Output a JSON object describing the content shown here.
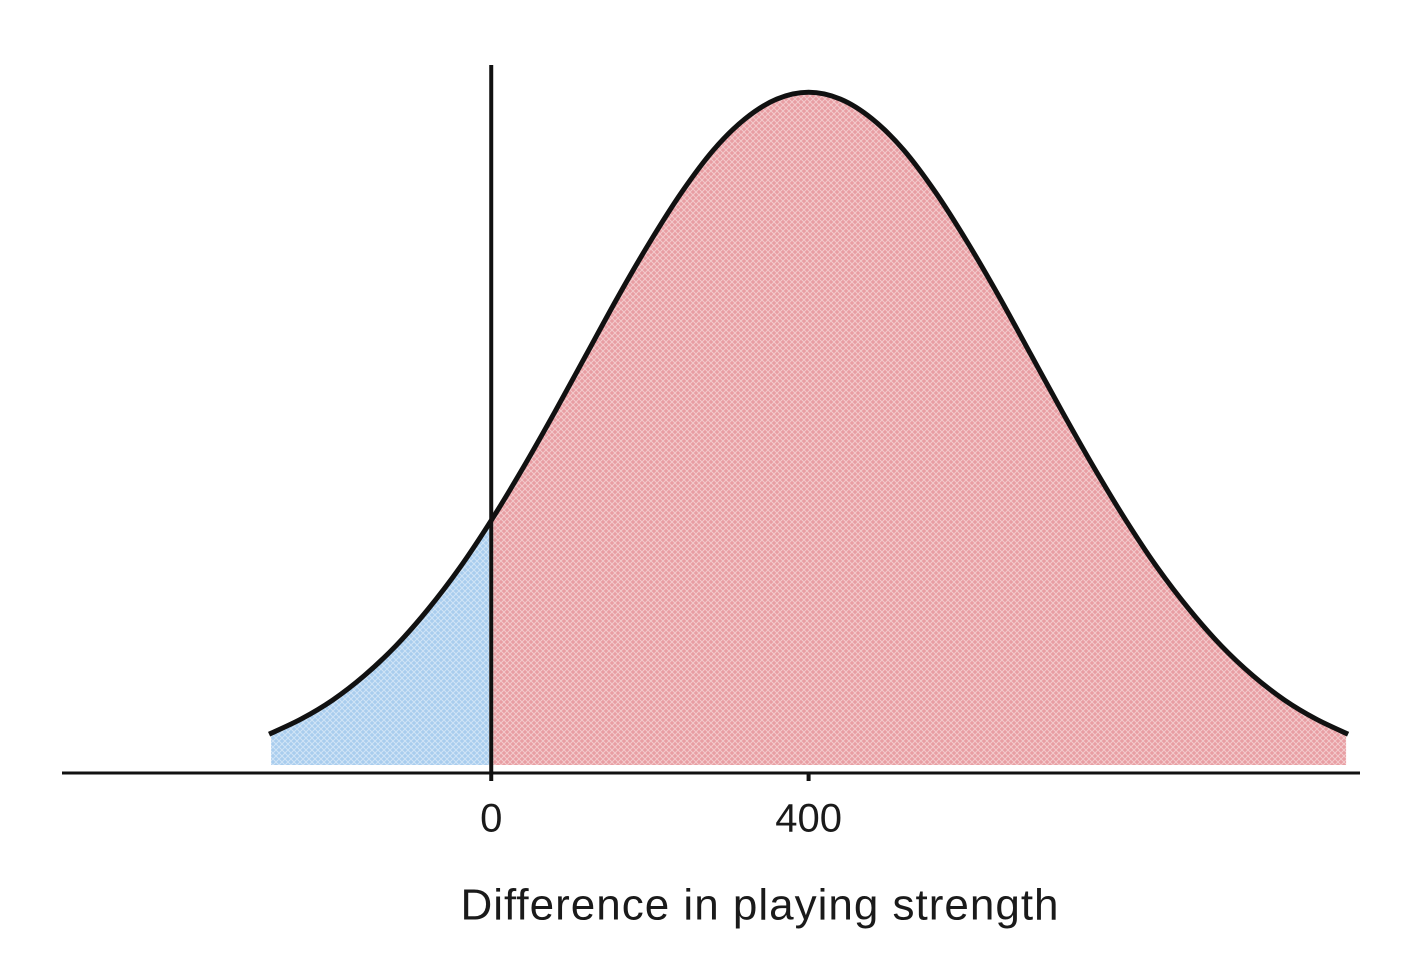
{
  "chart_data": {
    "type": "area",
    "x_label": "Difference in playing strength",
    "x": [
      -280,
      -240,
      -200,
      -160,
      -120,
      -80,
      -40,
      0,
      40,
      80,
      120,
      160,
      200,
      240,
      280,
      320,
      360,
      400,
      440,
      480,
      520,
      560,
      600,
      640,
      680,
      720,
      760,
      800,
      840,
      880,
      920,
      960,
      1000,
      1040,
      1080
    ],
    "values": [
      0.057,
      0.079,
      0.107,
      0.143,
      0.187,
      0.24,
      0.301,
      0.371,
      0.448,
      0.53,
      0.615,
      0.7,
      0.78,
      0.853,
      0.915,
      0.961,
      0.99,
      1.0,
      0.99,
      0.961,
      0.915,
      0.853,
      0.78,
      0.7,
      0.615,
      0.53,
      0.448,
      0.371,
      0.301,
      0.24,
      0.187,
      0.143,
      0.107,
      0.079,
      0.057
    ],
    "split_x": 0,
    "below_color": "#a9cdee",
    "above_color": "#e89ea3",
    "line_color": "#111111",
    "xlim": [
      -541,
      1095
    ],
    "xticks": [
      0,
      400
    ],
    "ylim": [
      0,
      1.04
    ]
  }
}
